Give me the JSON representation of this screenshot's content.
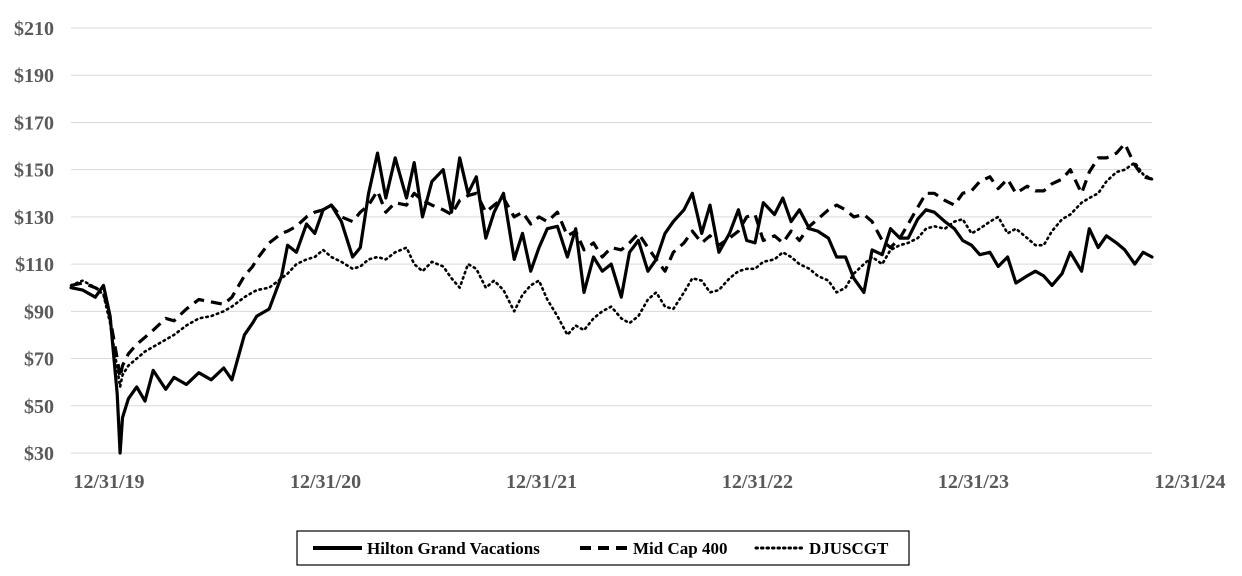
{
  "chart_data": {
    "type": "line",
    "title": "",
    "xlabel": "",
    "ylabel": "",
    "ylim": [
      30,
      210
    ],
    "y_ticks": [
      30,
      50,
      70,
      90,
      110,
      130,
      150,
      170,
      190,
      210
    ],
    "y_tick_labels": [
      "$30",
      "$50",
      "$70",
      "$90",
      "$110",
      "$130",
      "$150",
      "$170",
      "$190",
      "$210"
    ],
    "x_range": [
      "2019-12-31",
      "2024-12-31"
    ],
    "x_ticks": [
      "2019-12-31",
      "2020-12-31",
      "2021-12-31",
      "2022-12-31",
      "2023-12-31",
      "2024-12-31"
    ],
    "x_tick_labels": [
      "12/31/19",
      "12/31/20",
      "12/31/21",
      "12/31/22",
      "12/31/23",
      "12/31/24"
    ],
    "grid": "horizontal",
    "legend_position": "bottom",
    "series": [
      {
        "name": "Hilton Grand Vacations",
        "style": "solid",
        "color": "#000000",
        "x": [
          "2019-12-31",
          "2020-01-20",
          "2020-02-10",
          "2020-02-24",
          "2020-03-06",
          "2020-03-18",
          "2020-03-23",
          "2020-03-27",
          "2020-04-06",
          "2020-04-20",
          "2020-05-04",
          "2020-05-18",
          "2020-06-08",
          "2020-06-22",
          "2020-07-13",
          "2020-08-03",
          "2020-08-24",
          "2020-09-14",
          "2020-09-28",
          "2020-10-19",
          "2020-11-02",
          "2020-11-09",
          "2020-11-30",
          "2020-12-21",
          "2020-12-31",
          "2021-01-15",
          "2021-02-01",
          "2021-02-15",
          "2021-03-01",
          "2021-03-15",
          "2021-04-01",
          "2021-04-20",
          "2021-05-03",
          "2021-05-17",
          "2021-06-01",
          "2021-06-15",
          "2021-07-01",
          "2021-07-20",
          "2021-08-02",
          "2021-08-16",
          "2021-09-01",
          "2021-09-20",
          "2021-10-04",
          "2021-10-18",
          "2021-11-01",
          "2021-11-15",
          "2021-12-01",
          "2021-12-15",
          "2021-12-31",
          "2022-01-18",
          "2022-02-01",
          "2022-02-15",
          "2022-03-01",
          "2022-03-15",
          "2022-04-01",
          "2022-04-18",
          "2022-05-02",
          "2022-05-16",
          "2022-06-01",
          "2022-06-16",
          "2022-07-01",
          "2022-07-18",
          "2022-08-01",
          "2022-08-16",
          "2022-09-01",
          "2022-09-15",
          "2022-09-30",
          "2022-10-14",
          "2022-11-01",
          "2022-11-15",
          "2022-12-01",
          "2022-12-15",
          "2022-12-30",
          "2023-01-17",
          "2023-02-01",
          "2023-02-15",
          "2023-03-01",
          "2023-03-15",
          "2023-04-03",
          "2023-04-17",
          "2023-05-01",
          "2023-05-15",
          "2023-06-01",
          "2023-06-15",
          "2023-07-03",
          "2023-07-17",
          "2023-08-01",
          "2023-08-15",
          "2023-09-01",
          "2023-09-15",
          "2023-10-02",
          "2023-10-16",
          "2023-11-01",
          "2023-11-15",
          "2023-12-01",
          "2023-12-15",
          "2023-12-29",
          "2024-01-16",
          "2024-02-01",
          "2024-02-15",
          "2024-03-01",
          "2024-03-15",
          "2024-04-01",
          "2024-04-15",
          "2024-05-01",
          "2024-05-15",
          "2024-06-03",
          "2024-06-17",
          "2024-07-01",
          "2024-07-15",
          "2024-08-01",
          "2024-08-15",
          "2024-09-03",
          "2024-09-16",
          "2024-10-01",
          "2024-10-15",
          "2024-11-01",
          "2024-11-15",
          "2024-12-02",
          "2024-12-16",
          "2024-12-31"
        ],
        "y": [
          100,
          99,
          96,
          101,
          88,
          55,
          30,
          45,
          53,
          58,
          52,
          65,
          57,
          62,
          59,
          64,
          61,
          66,
          61,
          80,
          85,
          88,
          91,
          105,
          118,
          115,
          127,
          123,
          133,
          135,
          128,
          113,
          117,
          140,
          157,
          138,
          155,
          138,
          153,
          130,
          145,
          150,
          132,
          155,
          140,
          147,
          121,
          132,
          140,
          112,
          123,
          107,
          117,
          125,
          126,
          113,
          125,
          98,
          113,
          107,
          110,
          96,
          115,
          120,
          107,
          112,
          123,
          128,
          133,
          140,
          123,
          135,
          115,
          123,
          133,
          120,
          119,
          136,
          131,
          138,
          128,
          133,
          125,
          124,
          121,
          113,
          113,
          104,
          98,
          116,
          114,
          125,
          121,
          121,
          129,
          133,
          132,
          128,
          125,
          120,
          118,
          114,
          115,
          109,
          113,
          102,
          105,
          107,
          105,
          101,
          106,
          115,
          107,
          125,
          117,
          122,
          119,
          116,
          110,
          115,
          113
        ]
      },
      {
        "name": "Mid Cap 400",
        "style": "dashed",
        "color": "#000000",
        "x": [
          "2019-12-31",
          "2020-01-20",
          "2020-02-10",
          "2020-02-24",
          "2020-03-06",
          "2020-03-18",
          "2020-03-23",
          "2020-03-27",
          "2020-04-06",
          "2020-04-20",
          "2020-05-04",
          "2020-05-18",
          "2020-06-08",
          "2020-06-22",
          "2020-07-13",
          "2020-08-03",
          "2020-08-24",
          "2020-09-14",
          "2020-09-28",
          "2020-10-19",
          "2020-11-02",
          "2020-11-09",
          "2020-11-30",
          "2020-12-21",
          "2020-12-31",
          "2021-01-15",
          "2021-02-01",
          "2021-02-15",
          "2021-03-01",
          "2021-03-15",
          "2021-04-01",
          "2021-04-20",
          "2021-05-03",
          "2021-05-17",
          "2021-06-01",
          "2021-06-15",
          "2021-07-01",
          "2021-07-20",
          "2021-08-02",
          "2021-08-16",
          "2021-09-01",
          "2021-09-20",
          "2021-10-04",
          "2021-10-18",
          "2021-11-01",
          "2021-11-15",
          "2021-12-01",
          "2021-12-15",
          "2021-12-31",
          "2022-01-18",
          "2022-02-01",
          "2022-02-15",
          "2022-03-01",
          "2022-03-15",
          "2022-04-01",
          "2022-04-18",
          "2022-05-02",
          "2022-05-16",
          "2022-06-01",
          "2022-06-16",
          "2022-07-01",
          "2022-07-18",
          "2022-08-01",
          "2022-08-16",
          "2022-09-01",
          "2022-09-15",
          "2022-09-30",
          "2022-10-14",
          "2022-11-01",
          "2022-11-15",
          "2022-12-01",
          "2022-12-15",
          "2022-12-30",
          "2023-01-17",
          "2023-02-01",
          "2023-02-15",
          "2023-03-01",
          "2023-03-15",
          "2023-04-03",
          "2023-04-17",
          "2023-05-01",
          "2023-05-15",
          "2023-06-01",
          "2023-06-15",
          "2023-07-03",
          "2023-07-17",
          "2023-08-01",
          "2023-08-15",
          "2023-09-01",
          "2023-09-15",
          "2023-10-02",
          "2023-10-16",
          "2023-11-01",
          "2023-11-15",
          "2023-12-01",
          "2023-12-15",
          "2023-12-29",
          "2024-01-16",
          "2024-02-01",
          "2024-02-15",
          "2024-03-01",
          "2024-03-15",
          "2024-04-01",
          "2024-04-15",
          "2024-05-01",
          "2024-05-15",
          "2024-06-03",
          "2024-06-17",
          "2024-07-01",
          "2024-07-15",
          "2024-08-01",
          "2024-08-15",
          "2024-09-03",
          "2024-09-16",
          "2024-10-01",
          "2024-10-15",
          "2024-11-01",
          "2024-11-15",
          "2024-12-02",
          "2024-12-16",
          "2024-12-31"
        ],
        "y": [
          101,
          102,
          100,
          98,
          87,
          70,
          62,
          67,
          72,
          76,
          79,
          82,
          87,
          86,
          91,
          95,
          94,
          93,
          96,
          105,
          109,
          112,
          119,
          123,
          124,
          126,
          130,
          132,
          133,
          135,
          130,
          128,
          132,
          135,
          141,
          132,
          136,
          135,
          140,
          137,
          135,
          133,
          131,
          137,
          139,
          140,
          132,
          135,
          138,
          130,
          132,
          127,
          130,
          128,
          132,
          122,
          124,
          116,
          119,
          113,
          117,
          116,
          119,
          123,
          117,
          112,
          107,
          115,
          119,
          124,
          119,
          122,
          118,
          121,
          124,
          130,
          131,
          120,
          122,
          119,
          124,
          120,
          126,
          129,
          133,
          135,
          133,
          130,
          131,
          128,
          120,
          117,
          121,
          127,
          134,
          140,
          140,
          137,
          135,
          140,
          141,
          145,
          147,
          142,
          146,
          140,
          143,
          141,
          141,
          144,
          146,
          150,
          140,
          149,
          155,
          155,
          157,
          161,
          152,
          147,
          146
        ]
      },
      {
        "name": "DJUSCGT",
        "style": "dotted",
        "color": "#000000",
        "x": [
          "2019-12-31",
          "2020-01-20",
          "2020-02-10",
          "2020-02-24",
          "2020-03-06",
          "2020-03-18",
          "2020-03-23",
          "2020-03-27",
          "2020-04-06",
          "2020-04-20",
          "2020-05-04",
          "2020-05-18",
          "2020-06-08",
          "2020-06-22",
          "2020-07-13",
          "2020-08-03",
          "2020-08-24",
          "2020-09-14",
          "2020-09-28",
          "2020-10-19",
          "2020-11-02",
          "2020-11-09",
          "2020-11-30",
          "2020-12-21",
          "2020-12-31",
          "2021-01-15",
          "2021-02-01",
          "2021-02-15",
          "2021-03-01",
          "2021-03-15",
          "2021-04-01",
          "2021-04-20",
          "2021-05-03",
          "2021-05-17",
          "2021-06-01",
          "2021-06-15",
          "2021-07-01",
          "2021-07-20",
          "2021-08-02",
          "2021-08-16",
          "2021-09-01",
          "2021-09-20",
          "2021-10-04",
          "2021-10-18",
          "2021-11-01",
          "2021-11-15",
          "2021-12-01",
          "2021-12-15",
          "2021-12-31",
          "2022-01-18",
          "2022-02-01",
          "2022-02-15",
          "2022-03-01",
          "2022-03-15",
          "2022-04-01",
          "2022-04-18",
          "2022-05-02",
          "2022-05-16",
          "2022-06-01",
          "2022-06-16",
          "2022-07-01",
          "2022-07-18",
          "2022-08-01",
          "2022-08-16",
          "2022-09-01",
          "2022-09-15",
          "2022-09-30",
          "2022-10-14",
          "2022-11-01",
          "2022-11-15",
          "2022-12-01",
          "2022-12-15",
          "2022-12-30",
          "2023-01-17",
          "2023-02-01",
          "2023-02-15",
          "2023-03-01",
          "2023-03-15",
          "2023-04-03",
          "2023-04-17",
          "2023-05-01",
          "2023-05-15",
          "2023-06-01",
          "2023-06-15",
          "2023-07-03",
          "2023-07-17",
          "2023-08-01",
          "2023-08-15",
          "2023-09-01",
          "2023-09-15",
          "2023-10-02",
          "2023-10-16",
          "2023-11-01",
          "2023-11-15",
          "2023-12-01",
          "2023-12-15",
          "2023-12-29",
          "2024-01-16",
          "2024-02-01",
          "2024-02-15",
          "2024-03-01",
          "2024-03-15",
          "2024-04-01",
          "2024-04-15",
          "2024-05-01",
          "2024-05-15",
          "2024-06-03",
          "2024-06-17",
          "2024-07-01",
          "2024-07-15",
          "2024-08-01",
          "2024-08-15",
          "2024-09-03",
          "2024-09-16",
          "2024-10-01",
          "2024-10-15",
          "2024-11-01",
          "2024-11-15",
          "2024-12-02",
          "2024-12-16",
          "2024-12-31"
        ],
        "y": [
          101,
          103,
          100,
          97,
          85,
          66,
          58,
          63,
          67,
          70,
          73,
          75,
          78,
          80,
          84,
          87,
          88,
          90,
          92,
          96,
          98,
          99,
          100,
          104,
          106,
          110,
          112,
          113,
          116,
          113,
          111,
          108,
          109,
          112,
          113,
          112,
          115,
          117,
          110,
          107,
          111,
          109,
          104,
          100,
          110,
          108,
          100,
          103,
          99,
          90,
          97,
          101,
          103,
          95,
          88,
          80,
          84,
          82,
          87,
          90,
          92,
          87,
          85,
          88,
          95,
          98,
          92,
          91,
          98,
          104,
          103,
          98,
          99,
          104,
          107,
          108,
          108,
          111,
          112,
          115,
          113,
          110,
          108,
          105,
          103,
          98,
          100,
          106,
          110,
          113,
          110,
          116,
          118,
          119,
          121,
          125,
          126,
          125,
          128,
          129,
          123,
          125,
          128,
          130,
          123,
          125,
          121,
          118,
          118,
          124,
          129,
          131,
          136,
          138,
          140,
          145,
          149,
          150,
          153,
          148,
          146
        ]
      }
    ]
  }
}
